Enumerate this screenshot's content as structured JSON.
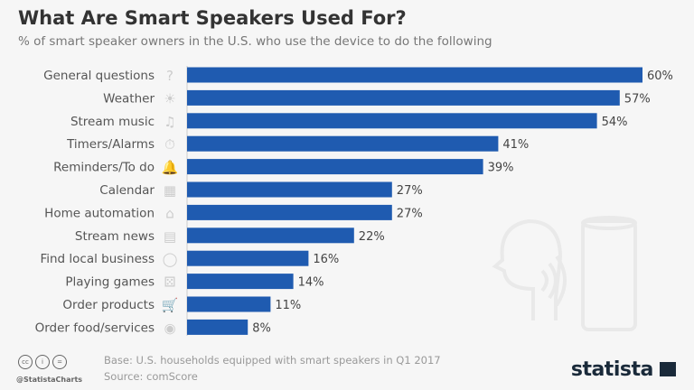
{
  "chart_data": {
    "type": "bar",
    "orientation": "horizontal",
    "title": "What Are Smart Speakers Used For?",
    "subtitle": "% of smart speaker owners in the U.S. who use the device to do the following",
    "categories": [
      "General questions",
      "Weather",
      "Stream music",
      "Timers/Alarms",
      "Reminders/To do",
      "Calendar",
      "Home automation",
      "Stream news",
      "Find local business",
      "Playing games",
      "Order products",
      "Order food/services"
    ],
    "values": [
      60,
      57,
      54,
      41,
      39,
      27,
      27,
      22,
      16,
      14,
      11,
      8
    ],
    "value_suffix": "%",
    "icons": [
      "question-icon",
      "sun-icon",
      "music-note-icon",
      "stopwatch-icon",
      "bell-icon",
      "calendar-icon",
      "house-icon",
      "newspaper-icon",
      "map-pin-icon",
      "dice-icon",
      "cart-icon",
      "food-plate-icon"
    ],
    "bar_color": "#1f5bb0",
    "xlim": [
      0,
      60
    ],
    "grid": false
  },
  "footer": {
    "base": "Base: U.S. households equipped with smart speakers in Q1 2017",
    "source": "Source: comScore",
    "handle": "@StatistaCharts",
    "logo": "statista"
  }
}
